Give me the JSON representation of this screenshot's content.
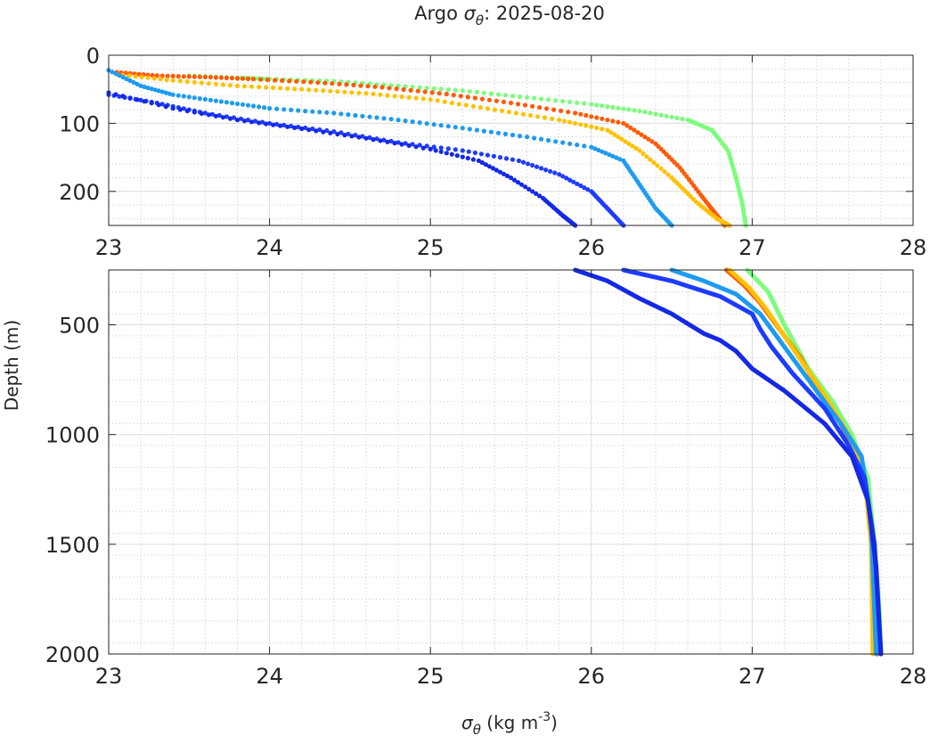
{
  "title": {
    "prefix": "Argo ",
    "symbol": "σ",
    "subscript": "θ",
    "suffix": ": 2025-08-20"
  },
  "xlabel": {
    "symbol": "σ",
    "subscript": "θ",
    "units_pre": " (kg m",
    "units_sup": "-3",
    "units_post": ")"
  },
  "ylabel": "Depth (m)",
  "colors": {
    "axis": "#262626",
    "major_grid": "#dcdcdc",
    "minor_grid": "#c8c8c8"
  },
  "chart_data": [
    {
      "type": "scatter",
      "panel": "top",
      "xlim": [
        23,
        28
      ],
      "ylim": [
        250,
        0
      ],
      "y_reversed": true,
      "x_ticks": [
        "23",
        "24",
        "25",
        "26",
        "27",
        "28"
      ],
      "y_ticks": [
        "0",
        "100",
        "200"
      ],
      "grid": true,
      "minor_grid": true,
      "series": [
        {
          "color": "#7cfc7c",
          "points": [
            [
              23.5,
              30
            ],
            [
              23.8,
              33
            ],
            [
              24.0,
              35
            ],
            [
              24.4,
              38
            ],
            [
              24.8,
              45
            ],
            [
              25.2,
              52
            ],
            [
              25.6,
              62
            ],
            [
              26.0,
              72
            ],
            [
              26.3,
              82
            ],
            [
              26.6,
              95
            ],
            [
              26.75,
              110
            ],
            [
              26.85,
              140
            ],
            [
              26.9,
              180
            ],
            [
              26.94,
              220
            ],
            [
              26.96,
              250
            ]
          ]
        },
        {
          "color": "#ff5a0a",
          "points": [
            [
              23.05,
              25
            ],
            [
              23.3,
              30
            ],
            [
              23.6,
              32
            ],
            [
              23.9,
              35
            ],
            [
              24.3,
              40
            ],
            [
              24.7,
              47
            ],
            [
              25.1,
              57
            ],
            [
              25.5,
              70
            ],
            [
              25.9,
              85
            ],
            [
              26.2,
              100
            ],
            [
              26.4,
              130
            ],
            [
              26.55,
              165
            ],
            [
              26.68,
              205
            ],
            [
              26.78,
              235
            ],
            [
              26.83,
              250
            ]
          ]
        },
        {
          "color": "#ffc107",
          "points": [
            [
              23.05,
              28
            ],
            [
              23.4,
              37
            ],
            [
              23.8,
              45
            ],
            [
              24.2,
              50
            ],
            [
              24.6,
              56
            ],
            [
              25.0,
              65
            ],
            [
              25.4,
              80
            ],
            [
              25.8,
              95
            ],
            [
              26.1,
              110
            ],
            [
              26.3,
              140
            ],
            [
              26.5,
              180
            ],
            [
              26.65,
              215
            ],
            [
              26.78,
              240
            ],
            [
              26.86,
              250
            ]
          ]
        },
        {
          "color": "#1e9bf0",
          "points": [
            [
              23.0,
              22
            ],
            [
              23.2,
              45
            ],
            [
              23.4,
              58
            ],
            [
              23.7,
              68
            ],
            [
              24.0,
              78
            ],
            [
              24.4,
              85
            ],
            [
              24.8,
              95
            ],
            [
              25.2,
              107
            ],
            [
              25.6,
              120
            ],
            [
              26.0,
              135
            ],
            [
              26.2,
              155
            ],
            [
              26.3,
              190
            ],
            [
              26.4,
              225
            ],
            [
              26.5,
              250
            ]
          ]
        },
        {
          "color": "#1e3cff",
          "points": [
            [
              23.0,
              58
            ],
            [
              23.3,
              70
            ],
            [
              23.6,
              85
            ],
            [
              24.0,
              100
            ],
            [
              24.4,
              112
            ],
            [
              24.8,
              128
            ],
            [
              25.2,
              140
            ],
            [
              25.55,
              155
            ],
            [
              25.8,
              175
            ],
            [
              26.0,
              200
            ],
            [
              26.1,
              225
            ],
            [
              26.2,
              250
            ]
          ]
        },
        {
          "color": "#1428e6",
          "points": [
            [
              23.0,
              55
            ],
            [
              23.4,
              78
            ],
            [
              23.8,
              95
            ],
            [
              24.2,
              108
            ],
            [
              24.6,
              122
            ],
            [
              25.0,
              138
            ],
            [
              25.3,
              155
            ],
            [
              25.5,
              180
            ],
            [
              25.7,
              210
            ],
            [
              25.82,
              235
            ],
            [
              25.9,
              250
            ]
          ]
        }
      ]
    },
    {
      "type": "line",
      "panel": "bottom",
      "xlim": [
        23,
        28
      ],
      "ylim": [
        2000,
        250
      ],
      "y_reversed": true,
      "x_ticks": [
        "23",
        "24",
        "25",
        "26",
        "27",
        "28"
      ],
      "y_ticks": [
        "500",
        "1000",
        "1500",
        "2000"
      ],
      "grid": true,
      "minor_grid": true,
      "series": [
        {
          "color": "#7cfc7c",
          "points": [
            [
              26.97,
              250
            ],
            [
              27.1,
              350
            ],
            [
              27.2,
              500
            ],
            [
              27.35,
              700
            ],
            [
              27.5,
              850
            ],
            [
              27.62,
              1000
            ],
            [
              27.72,
              1200
            ],
            [
              27.76,
              1500
            ],
            [
              27.79,
              1800
            ],
            [
              27.8,
              2000
            ]
          ]
        },
        {
          "color": "#ff5a0a",
          "points": [
            [
              26.84,
              250
            ],
            [
              26.95,
              320
            ],
            [
              27.05,
              400
            ],
            [
              27.15,
              500
            ],
            [
              27.3,
              650
            ],
            [
              27.42,
              800
            ],
            [
              27.55,
              950
            ],
            [
              27.65,
              1100
            ],
            [
              27.72,
              1300
            ],
            [
              27.76,
              1600
            ],
            [
              27.78,
              2000
            ]
          ]
        },
        {
          "color": "#ffc107",
          "points": [
            [
              26.86,
              250
            ],
            [
              26.98,
              330
            ],
            [
              27.08,
              420
            ],
            [
              27.2,
              550
            ],
            [
              27.32,
              680
            ],
            [
              27.45,
              820
            ],
            [
              27.6,
              1000
            ],
            [
              27.7,
              1200
            ],
            [
              27.74,
              1500
            ],
            [
              27.75,
              2000
            ]
          ]
        },
        {
          "color": "#1e9bf0",
          "points": [
            [
              26.5,
              250
            ],
            [
              26.7,
              300
            ],
            [
              26.9,
              360
            ],
            [
              27.05,
              450
            ],
            [
              27.15,
              550
            ],
            [
              27.25,
              650
            ],
            [
              27.4,
              800
            ],
            [
              27.55,
              950
            ],
            [
              27.68,
              1100
            ],
            [
              27.74,
              1400
            ],
            [
              27.77,
              2000
            ]
          ]
        },
        {
          "color": "#1e3cff",
          "points": [
            [
              26.2,
              250
            ],
            [
              26.5,
              300
            ],
            [
              26.8,
              370
            ],
            [
              27.0,
              450
            ],
            [
              27.05,
              520
            ],
            [
              27.12,
              600
            ],
            [
              27.25,
              720
            ],
            [
              27.45,
              880
            ],
            [
              27.6,
              1050
            ],
            [
              27.7,
              1200
            ],
            [
              27.76,
              1500
            ],
            [
              27.8,
              2000
            ]
          ]
        },
        {
          "color": "#1428e6",
          "points": [
            [
              25.9,
              250
            ],
            [
              26.1,
              300
            ],
            [
              26.3,
              380
            ],
            [
              26.5,
              450
            ],
            [
              26.7,
              540
            ],
            [
              26.8,
              570
            ],
            [
              26.9,
              620
            ],
            [
              27.0,
              700
            ],
            [
              27.2,
              800
            ],
            [
              27.45,
              950
            ],
            [
              27.62,
              1100
            ],
            [
              27.72,
              1300
            ],
            [
              27.77,
              1600
            ],
            [
              27.8,
              2000
            ]
          ]
        }
      ]
    }
  ]
}
